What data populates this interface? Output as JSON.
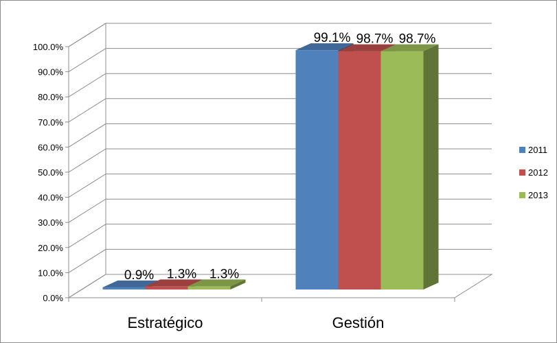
{
  "chart_data": {
    "type": "bar",
    "title": "",
    "xlabel": "",
    "ylabel": "",
    "categories": [
      "Estratégico",
      "Gestión"
    ],
    "series": [
      {
        "name": "2011",
        "values": [
          0.9,
          99.1
        ],
        "labels": [
          "0.9%",
          "99.1%"
        ],
        "color": "#4f81bd"
      },
      {
        "name": "2012",
        "values": [
          1.3,
          98.7
        ],
        "labels": [
          "1.3%",
          "98.7%"
        ],
        "color": "#c0504d"
      },
      {
        "name": "2013",
        "values": [
          1.3,
          98.7
        ],
        "labels": [
          "1.3%",
          "98.7%"
        ],
        "color": "#9bbb59"
      }
    ],
    "ylim": [
      0,
      100
    ],
    "yticks": [
      "0.0%",
      "10.0%",
      "20.0%",
      "30.0%",
      "40.0%",
      "50.0%",
      "60.0%",
      "70.0%",
      "80.0%",
      "90.0%",
      "100.0%"
    ],
    "grid": true,
    "legend": "right",
    "style": "3d-clustered-column"
  }
}
